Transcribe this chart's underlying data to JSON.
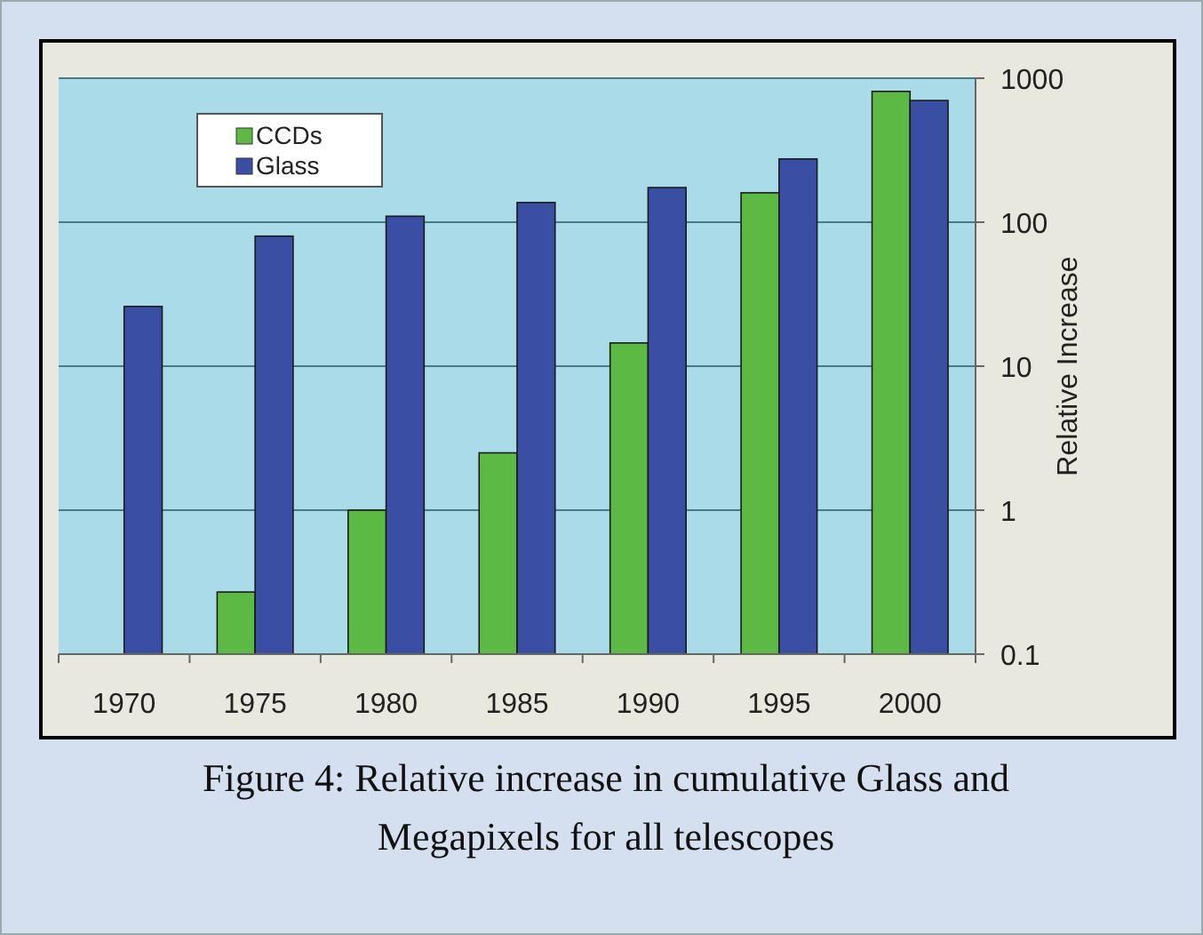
{
  "chart_data": {
    "type": "bar",
    "ylabel": "Relative Increase",
    "annotations": [
      "Figure 4: Relative increase in cumulative Glass and Megapixels for all telescopes"
    ],
    "categories": [
      "1970",
      "1975",
      "1980",
      "1985",
      "1990",
      "1995",
      "2000"
    ],
    "series": [
      {
        "name": "CCDs",
        "color": "#5cb944",
        "values": [
          null,
          0.27,
          1,
          2.5,
          14.5,
          160,
          810
        ]
      },
      {
        "name": "Glass",
        "color": "#3a4fa3",
        "values": [
          26,
          80,
          110,
          137,
          174,
          275,
          700
        ]
      }
    ],
    "log": true,
    "ylim": [
      0.1,
      1000
    ],
    "yticks": [
      0.1,
      1,
      10,
      100,
      1000
    ],
    "grid": "y",
    "legend": "top left"
  }
}
